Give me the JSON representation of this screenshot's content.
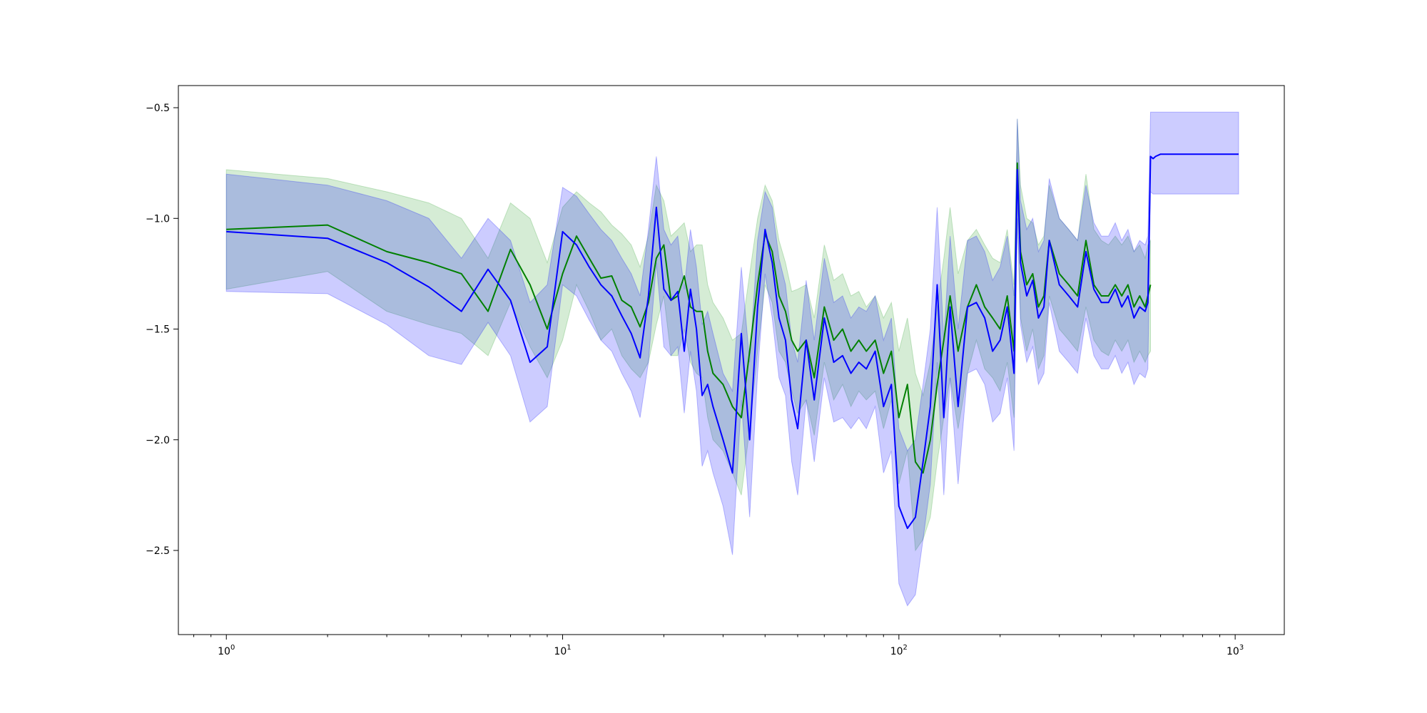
{
  "chart_data": {
    "type": "line",
    "title": "",
    "xlabel": "",
    "ylabel": "",
    "x_scale": "log",
    "xlim": [
      0.72,
      1400
    ],
    "ylim": [
      -2.88,
      -0.4
    ],
    "x_ticks": [
      {
        "value": 1,
        "label": "10",
        "exp": "0"
      },
      {
        "value": 10,
        "label": "10",
        "exp": "1"
      },
      {
        "value": 100,
        "label": "10",
        "exp": "2"
      },
      {
        "value": 1000,
        "label": "10",
        "exp": "3"
      }
    ],
    "y_ticks": [
      {
        "value": -0.5,
        "label": "−0.5"
      },
      {
        "value": -1.0,
        "label": "−1.0"
      },
      {
        "value": -1.5,
        "label": "−1.5"
      },
      {
        "value": -2.0,
        "label": "−2.0"
      },
      {
        "value": -2.5,
        "label": "−2.5"
      }
    ],
    "grid": false,
    "legend": "none",
    "colors": {
      "green_line": "#008000",
      "green_band": "#2ca02c",
      "blue_line": "#0000ff",
      "blue_band": "#0000ff"
    },
    "series": [
      {
        "color": "#008000",
        "band_color": "#2ca02c",
        "x": [
          1,
          2,
          3,
          4,
          5,
          6,
          7,
          8,
          9,
          10,
          11,
          12,
          13,
          14,
          15,
          16,
          17,
          18,
          19,
          20,
          21,
          22,
          23,
          24,
          25,
          26,
          27,
          28,
          30,
          32,
          34,
          36,
          38,
          40,
          42,
          44,
          46,
          48,
          50,
          53,
          56,
          60,
          64,
          68,
          72,
          76,
          80,
          85,
          90,
          95,
          100,
          106,
          112,
          118,
          124,
          130,
          136,
          142,
          150,
          160,
          170,
          180,
          190,
          200,
          210,
          220,
          225,
          230,
          240,
          250,
          260,
          270,
          280,
          300,
          320,
          340,
          360,
          380,
          400,
          420,
          440,
          460,
          480,
          500,
          520,
          540,
          550,
          560
        ],
        "y": [
          -1.05,
          -1.03,
          -1.15,
          -1.2,
          -1.25,
          -1.42,
          -1.14,
          -1.3,
          -1.5,
          -1.25,
          -1.08,
          -1.18,
          -1.27,
          -1.26,
          -1.37,
          -1.4,
          -1.49,
          -1.38,
          -1.18,
          -1.12,
          -1.37,
          -1.35,
          -1.26,
          -1.4,
          -1.42,
          -1.42,
          -1.6,
          -1.7,
          -1.75,
          -1.85,
          -1.9,
          -1.6,
          -1.3,
          -1.07,
          -1.15,
          -1.35,
          -1.42,
          -1.55,
          -1.6,
          -1.55,
          -1.72,
          -1.4,
          -1.55,
          -1.5,
          -1.6,
          -1.55,
          -1.6,
          -1.55,
          -1.7,
          -1.6,
          -1.9,
          -1.75,
          -2.1,
          -2.15,
          -2.0,
          -1.75,
          -1.55,
          -1.35,
          -1.6,
          -1.4,
          -1.3,
          -1.4,
          -1.45,
          -1.5,
          -1.35,
          -1.6,
          -0.75,
          -1.15,
          -1.3,
          -1.25,
          -1.4,
          -1.35,
          -1.1,
          -1.25,
          -1.3,
          -1.35,
          -1.1,
          -1.3,
          -1.35,
          -1.35,
          -1.3,
          -1.35,
          -1.3,
          -1.4,
          -1.35,
          -1.4,
          -1.35,
          -1.3
        ],
        "y_upper": [
          -0.78,
          -0.82,
          -0.88,
          -0.93,
          -1.0,
          -1.18,
          -0.93,
          -1.0,
          -1.2,
          -0.95,
          -0.88,
          -0.93,
          -0.97,
          -1.03,
          -1.07,
          -1.12,
          -1.22,
          -1.08,
          -0.85,
          -0.92,
          -1.08,
          -1.05,
          -1.02,
          -1.15,
          -1.12,
          -1.12,
          -1.3,
          -1.38,
          -1.45,
          -1.55,
          -1.52,
          -1.25,
          -1.0,
          -0.85,
          -0.92,
          -1.1,
          -1.2,
          -1.33,
          -1.32,
          -1.3,
          -1.45,
          -1.12,
          -1.28,
          -1.25,
          -1.35,
          -1.33,
          -1.4,
          -1.35,
          -1.45,
          -1.38,
          -1.6,
          -1.45,
          -1.7,
          -1.8,
          -1.65,
          -1.4,
          -1.18,
          -0.95,
          -1.25,
          -1.1,
          -1.05,
          -1.12,
          -1.18,
          -1.2,
          -1.05,
          -1.3,
          -0.55,
          -0.85,
          -1.0,
          -1.02,
          -1.12,
          -1.08,
          -0.85,
          -1.0,
          -1.05,
          -1.1,
          -0.8,
          -1.05,
          -1.1,
          -1.12,
          -1.08,
          -1.12,
          -1.08,
          -1.15,
          -1.12,
          -1.18,
          -1.12,
          -1.1
        ],
        "y_lower": [
          -1.32,
          -1.24,
          -1.42,
          -1.48,
          -1.52,
          -1.62,
          -1.38,
          -1.58,
          -1.72,
          -1.55,
          -1.3,
          -1.42,
          -1.55,
          -1.5,
          -1.62,
          -1.68,
          -1.72,
          -1.65,
          -1.48,
          -1.35,
          -1.62,
          -1.62,
          -1.5,
          -1.65,
          -1.7,
          -1.72,
          -1.9,
          -2.0,
          -2.05,
          -2.15,
          -2.25,
          -1.95,
          -1.6,
          -1.3,
          -1.38,
          -1.6,
          -1.65,
          -1.78,
          -1.88,
          -1.82,
          -1.98,
          -1.65,
          -1.82,
          -1.75,
          -1.85,
          -1.78,
          -1.82,
          -1.78,
          -1.95,
          -1.82,
          -2.2,
          -2.05,
          -2.5,
          -2.45,
          -2.35,
          -2.1,
          -1.9,
          -1.72,
          -1.95,
          -1.7,
          -1.55,
          -1.68,
          -1.72,
          -1.78,
          -1.65,
          -1.9,
          -0.95,
          -1.45,
          -1.6,
          -1.5,
          -1.68,
          -1.62,
          -1.35,
          -1.5,
          -1.55,
          -1.6,
          -1.4,
          -1.55,
          -1.6,
          -1.62,
          -1.55,
          -1.6,
          -1.55,
          -1.65,
          -1.6,
          -1.65,
          -1.62,
          -1.6
        ]
      },
      {
        "color": "#0000ff",
        "band_color": "#0000ff",
        "x": [
          1,
          2,
          3,
          4,
          5,
          6,
          7,
          8,
          9,
          10,
          11,
          12,
          13,
          14,
          15,
          16,
          17,
          18,
          19,
          20,
          21,
          22,
          23,
          24,
          25,
          26,
          27,
          28,
          30,
          32,
          34,
          36,
          38,
          40,
          42,
          44,
          46,
          48,
          50,
          53,
          56,
          60,
          64,
          68,
          72,
          76,
          80,
          85,
          90,
          95,
          100,
          106,
          112,
          118,
          124,
          130,
          136,
          142,
          150,
          160,
          170,
          180,
          190,
          200,
          210,
          220,
          225,
          230,
          240,
          250,
          260,
          270,
          280,
          300,
          320,
          340,
          360,
          380,
          400,
          420,
          440,
          460,
          480,
          500,
          520,
          540,
          550,
          560,
          570,
          580,
          600,
          700,
          800,
          900,
          1024
        ],
        "y": [
          -1.06,
          -1.09,
          -1.2,
          -1.31,
          -1.42,
          -1.23,
          -1.37,
          -1.65,
          -1.58,
          -1.06,
          -1.12,
          -1.22,
          -1.3,
          -1.35,
          -1.44,
          -1.52,
          -1.63,
          -1.35,
          -0.95,
          -1.32,
          -1.37,
          -1.33,
          -1.6,
          -1.32,
          -1.5,
          -1.8,
          -1.75,
          -1.85,
          -2.0,
          -2.15,
          -1.52,
          -2.0,
          -1.4,
          -1.05,
          -1.2,
          -1.45,
          -1.55,
          -1.82,
          -1.95,
          -1.55,
          -1.82,
          -1.45,
          -1.65,
          -1.62,
          -1.7,
          -1.65,
          -1.68,
          -1.6,
          -1.85,
          -1.75,
          -2.3,
          -2.4,
          -2.35,
          -2.1,
          -1.85,
          -1.3,
          -1.9,
          -1.4,
          -1.85,
          -1.4,
          -1.38,
          -1.45,
          -1.6,
          -1.55,
          -1.4,
          -1.7,
          -0.78,
          -1.2,
          -1.35,
          -1.28,
          -1.45,
          -1.4,
          -1.1,
          -1.3,
          -1.35,
          -1.4,
          -1.15,
          -1.32,
          -1.38,
          -1.38,
          -1.32,
          -1.4,
          -1.35,
          -1.45,
          -1.4,
          -1.42,
          -1.38,
          -0.72,
          -0.73,
          -0.72,
          -0.71,
          -0.71,
          -0.71,
          -0.71,
          -0.71
        ],
        "y_upper": [
          -0.8,
          -0.85,
          -0.92,
          -1.0,
          -1.18,
          -1.0,
          -1.1,
          -1.38,
          -1.3,
          -0.86,
          -0.9,
          -0.98,
          -1.05,
          -1.1,
          -1.18,
          -1.25,
          -1.35,
          -1.05,
          -0.72,
          -1.05,
          -1.12,
          -1.08,
          -1.32,
          -1.05,
          -1.22,
          -1.48,
          -1.42,
          -1.52,
          -1.7,
          -1.78,
          -1.22,
          -1.65,
          -1.1,
          -0.88,
          -0.95,
          -1.18,
          -1.3,
          -1.55,
          -1.65,
          -1.28,
          -1.55,
          -1.18,
          -1.38,
          -1.35,
          -1.45,
          -1.4,
          -1.42,
          -1.35,
          -1.55,
          -1.45,
          -1.95,
          -2.05,
          -2.0,
          -1.75,
          -1.5,
          -0.95,
          -1.55,
          -1.08,
          -1.5,
          -1.1,
          -1.08,
          -1.15,
          -1.28,
          -1.22,
          -1.08,
          -1.35,
          -0.55,
          -0.92,
          -1.05,
          -1.0,
          -1.15,
          -1.1,
          -0.82,
          -1.0,
          -1.05,
          -1.1,
          -0.85,
          -1.02,
          -1.08,
          -1.08,
          -1.02,
          -1.1,
          -1.05,
          -1.15,
          -1.1,
          -1.12,
          -1.08,
          -0.52,
          -0.52,
          -0.52,
          -0.52,
          -0.52,
          -0.52,
          -0.52,
          -0.52
        ],
        "y_lower": [
          -1.33,
          -1.34,
          -1.48,
          -1.62,
          -1.66,
          -1.47,
          -1.62,
          -1.92,
          -1.85,
          -1.3,
          -1.35,
          -1.46,
          -1.55,
          -1.6,
          -1.7,
          -1.78,
          -1.9,
          -1.65,
          -1.2,
          -1.58,
          -1.62,
          -1.58,
          -1.88,
          -1.6,
          -1.78,
          -2.12,
          -2.05,
          -2.15,
          -2.3,
          -2.52,
          -1.82,
          -2.35,
          -1.7,
          -1.25,
          -1.45,
          -1.72,
          -1.8,
          -2.1,
          -2.25,
          -1.82,
          -2.1,
          -1.72,
          -1.92,
          -1.9,
          -1.95,
          -1.9,
          -1.95,
          -1.85,
          -2.15,
          -2.05,
          -2.65,
          -2.75,
          -2.7,
          -2.45,
          -2.2,
          -1.65,
          -2.25,
          -1.72,
          -2.2,
          -1.7,
          -1.68,
          -1.75,
          -1.92,
          -1.88,
          -1.72,
          -2.05,
          -1.0,
          -1.48,
          -1.65,
          -1.58,
          -1.75,
          -1.7,
          -1.38,
          -1.6,
          -1.65,
          -1.7,
          -1.45,
          -1.62,
          -1.68,
          -1.68,
          -1.62,
          -1.7,
          -1.65,
          -1.75,
          -1.7,
          -1.72,
          -1.68,
          -0.88,
          -0.89,
          -0.89,
          -0.89,
          -0.89,
          -0.89,
          -0.89,
          -0.89
        ]
      }
    ]
  }
}
